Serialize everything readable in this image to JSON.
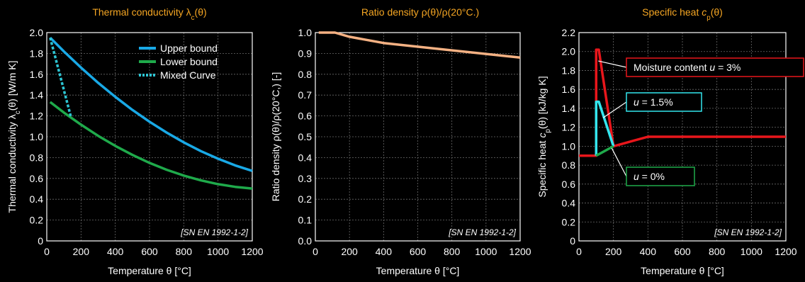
{
  "chart_data": [
    {
      "type": "line",
      "title": "Thermal conductivity λc(θ)",
      "title_parts": {
        "main": "Thermal conductivity λ",
        "sub": "c",
        "tail": "(θ)"
      },
      "xlabel": "Temperature θ [°C]",
      "ylabel": "Thermal conductivity λc(θ) [W/m K]",
      "ylabel_parts": {
        "main": "Thermal conductivity λ",
        "sub": "c",
        "tail": "(θ) [W/m K]"
      },
      "xlim": [
        0,
        1200
      ],
      "ylim": [
        0,
        2.0
      ],
      "xticks": [
        0,
        200,
        400,
        600,
        800,
        1000,
        1200
      ],
      "yticks": [
        0,
        0.2,
        0.4,
        0.6,
        0.8,
        1.0,
        1.2,
        1.4,
        1.6,
        1.8,
        2.0
      ],
      "ytick_labels": [
        "0",
        "0.2",
        "0.4",
        "0.6",
        "0.8",
        "1.0",
        "1.2",
        "1.4",
        "1.6",
        "1.8",
        "2.0"
      ],
      "grid": true,
      "legend_position": "top-right",
      "source_note": "[SN EN 1992-1-2]",
      "series": [
        {
          "name": "Upper bound",
          "color": "#19a9e6",
          "dash": "solid",
          "x": [
            20,
            100,
            200,
            300,
            400,
            500,
            600,
            700,
            800,
            900,
            1000,
            1100,
            1200
          ],
          "y": [
            1.951,
            1.819,
            1.664,
            1.518,
            1.383,
            1.258,
            1.144,
            1.04,
            0.946,
            0.862,
            0.789,
            0.725,
            0.672
          ]
        },
        {
          "name": "Lower bound",
          "color": "#1faa4b",
          "dash": "solid",
          "x": [
            20,
            100,
            200,
            300,
            400,
            500,
            600,
            700,
            800,
            900,
            1000,
            1100,
            1200
          ],
          "y": [
            1.333,
            1.232,
            1.116,
            1.009,
            0.912,
            0.826,
            0.749,
            0.683,
            0.627,
            0.581,
            0.545,
            0.519,
            0.503
          ]
        },
        {
          "name": "Mixed Curve",
          "color": "#2dc5d3",
          "dash": "dotted",
          "x": [
            20,
            140
          ],
          "y": [
            1.951,
            1.198
          ]
        }
      ]
    },
    {
      "type": "line",
      "title": "Ratio density ρ(θ)/ρ(20°C.)",
      "xlabel": "Temperature θ [°C]",
      "ylabel": "Ratio density ρ(θ)/ρ(20°C,) [-]",
      "xlim": [
        0,
        1200
      ],
      "ylim": [
        0,
        1.0
      ],
      "xticks": [
        0,
        200,
        400,
        600,
        800,
        1000,
        1200
      ],
      "yticks": [
        0,
        0.1,
        0.2,
        0.3,
        0.4,
        0.5,
        0.6,
        0.7,
        0.8,
        0.9,
        1.0
      ],
      "ytick_labels": [
        "0.0",
        "0.1",
        "0.2",
        "0.3",
        "0.4",
        "0.5",
        "0.6",
        "0.7",
        "0.8",
        "0.9",
        "1.0"
      ],
      "grid": true,
      "source_note": "[SN EN 1992-1-2]",
      "series": [
        {
          "color": "#f4b183",
          "x": [
            20,
            115,
            200,
            400,
            1200
          ],
          "y": [
            1.0,
            1.0,
            0.98,
            0.95,
            0.88
          ]
        }
      ]
    },
    {
      "type": "line",
      "title": "Specific heat cp(θ)",
      "title_parts": {
        "main": "Specific heat ",
        "italic": "c",
        "sub": "p",
        "tail": "(θ)"
      },
      "xlabel": "Temperature θ [°C]",
      "ylabel": "Specific heat cp(θ) [kJ/kg K]",
      "ylabel_parts": {
        "main": "Specific heat ",
        "italic": "c",
        "sub": "p",
        "tail": "(θ) [kJ/kg K]"
      },
      "xlim": [
        0,
        1200
      ],
      "ylim": [
        0,
        2.2
      ],
      "xticks": [
        0,
        200,
        400,
        600,
        800,
        1000,
        1200
      ],
      "yticks": [
        0,
        0.2,
        0.4,
        0.6,
        0.8,
        1.0,
        1.2,
        1.4,
        1.6,
        1.8,
        2.0,
        2.2
      ],
      "ytick_labels": [
        "0",
        "0.2",
        "0.4",
        "0.6",
        "0.8",
        "1.0",
        "1.2",
        "1.4",
        "1.6",
        "1.8",
        "2.0",
        "2.2"
      ],
      "grid": true,
      "source_note": "[SN EN 1992-1-2]",
      "series": [
        {
          "name": "u = 3%",
          "color": "#e8161b",
          "x": [
            0,
            100,
            100,
            115,
            200,
            400,
            1200
          ],
          "y": [
            0.9,
            0.9,
            2.02,
            2.02,
            1.0,
            1.1,
            1.1
          ]
        },
        {
          "name": "u = 1.5%",
          "color": "#33e6ee",
          "x": [
            100,
            100,
            115,
            200
          ],
          "y": [
            0.9,
            1.47,
            1.47,
            1.0
          ]
        },
        {
          "name": "u = 0%",
          "color": "#1faa4b",
          "x": [
            100,
            200
          ],
          "y": [
            0.9,
            1.0
          ]
        }
      ],
      "annotations": [
        {
          "text_parts": {
            "main": "Moisture content ",
            "italic": "u",
            "tail": " = 3%"
          },
          "text": "Moisture content u = 3%",
          "color": "#e8161b",
          "target_x": 112,
          "target_y": 1.9
        },
        {
          "text_parts": {
            "main": "",
            "italic": "u",
            "tail": " = 1.5%"
          },
          "text": "u = 1.5%",
          "color": "#33e6ee",
          "target_x": 140,
          "target_y": 1.3
        },
        {
          "text_parts": {
            "main": "",
            "italic": "u",
            "tail": " = 0%"
          },
          "text": "u = 0%",
          "color": "#1faa4b",
          "target_x": 190,
          "target_y": 0.98
        }
      ]
    }
  ],
  "colors": {
    "background": "#000000",
    "title": "#f5a623",
    "axis_text": "#ffffff",
    "grid": "#6a6a6a",
    "plot_border": "#ffffff",
    "source_note": "#ffffff"
  }
}
